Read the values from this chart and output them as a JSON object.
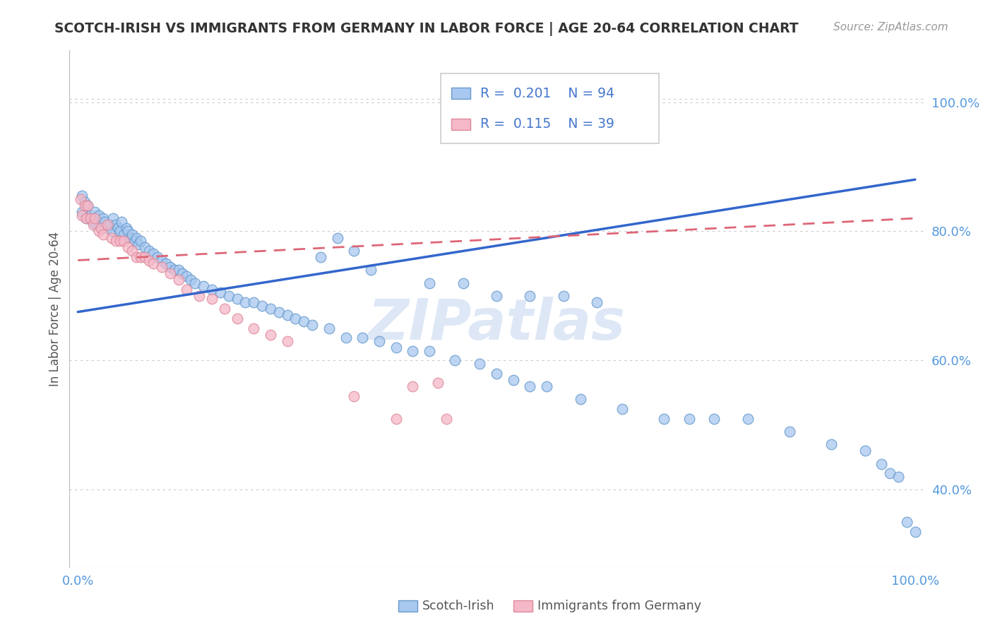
{
  "title": "SCOTCH-IRISH VS IMMIGRANTS FROM GERMANY IN LABOR FORCE | AGE 20-64 CORRELATION CHART",
  "source_text": "Source: ZipAtlas.com",
  "ylabel": "In Labor Force | Age 20-64",
  "xlim": [
    -0.01,
    1.01
  ],
  "ylim": [
    0.28,
    1.08
  ],
  "y_tick_values": [
    0.4,
    0.6,
    0.8,
    1.0
  ],
  "y_tick_labels": [
    "40.0%",
    "60.0%",
    "80.0%",
    "100.0%"
  ],
  "legend_blue_label": "Scotch-Irish",
  "legend_pink_label": "Immigrants from Germany",
  "R_blue": "0.201",
  "N_blue": "94",
  "R_pink": "0.115",
  "N_pink": "39",
  "blue_fill": "#A8C8F0",
  "blue_edge": "#6699CC",
  "pink_fill": "#F5B8C8",
  "pink_edge": "#DD8899",
  "trend_blue_color": "#3366CC",
  "trend_pink_color": "#DD6677",
  "axis_label_color": "#5599DD",
  "title_color": "#333333",
  "source_color": "#999999",
  "ylabel_color": "#555555",
  "grid_color": "#CCCCCC",
  "legend_text_color": "#4477CC",
  "watermark_color": "#C8D8F0",
  "blue_trend_y0": 0.675,
  "blue_trend_y1": 0.88,
  "pink_trend_y0": 0.755,
  "pink_trend_y1": 0.82,
  "blue_x": [
    0.005,
    0.005,
    0.008,
    0.01,
    0.012,
    0.015,
    0.018,
    0.02,
    0.022,
    0.025,
    0.028,
    0.03,
    0.032,
    0.035,
    0.038,
    0.04,
    0.042,
    0.045,
    0.048,
    0.05,
    0.052,
    0.055,
    0.058,
    0.06,
    0.062,
    0.065,
    0.068,
    0.07,
    0.072,
    0.075,
    0.08,
    0.085,
    0.09,
    0.095,
    0.1,
    0.105,
    0.11,
    0.115,
    0.12,
    0.125,
    0.13,
    0.135,
    0.14,
    0.15,
    0.16,
    0.17,
    0.18,
    0.19,
    0.2,
    0.21,
    0.22,
    0.23,
    0.24,
    0.25,
    0.26,
    0.27,
    0.28,
    0.3,
    0.32,
    0.34,
    0.36,
    0.38,
    0.4,
    0.42,
    0.45,
    0.48,
    0.5,
    0.52,
    0.54,
    0.56,
    0.6,
    0.65,
    0.7,
    0.73,
    0.76,
    0.8,
    0.85,
    0.9,
    0.94,
    0.96,
    0.97,
    0.98,
    0.99,
    1.0,
    0.29,
    0.31,
    0.33,
    0.35,
    0.42,
    0.46,
    0.5,
    0.54,
    0.58,
    0.62
  ],
  "blue_y": [
    0.855,
    0.83,
    0.845,
    0.82,
    0.84,
    0.825,
    0.815,
    0.83,
    0.81,
    0.825,
    0.81,
    0.82,
    0.815,
    0.805,
    0.81,
    0.8,
    0.82,
    0.81,
    0.805,
    0.8,
    0.815,
    0.795,
    0.805,
    0.8,
    0.79,
    0.795,
    0.785,
    0.79,
    0.78,
    0.785,
    0.775,
    0.77,
    0.765,
    0.76,
    0.755,
    0.75,
    0.745,
    0.74,
    0.74,
    0.735,
    0.73,
    0.725,
    0.72,
    0.715,
    0.71,
    0.705,
    0.7,
    0.695,
    0.69,
    0.69,
    0.685,
    0.68,
    0.675,
    0.67,
    0.665,
    0.66,
    0.655,
    0.65,
    0.635,
    0.635,
    0.63,
    0.62,
    0.615,
    0.615,
    0.6,
    0.595,
    0.58,
    0.57,
    0.56,
    0.56,
    0.54,
    0.525,
    0.51,
    0.51,
    0.51,
    0.51,
    0.49,
    0.47,
    0.46,
    0.44,
    0.425,
    0.42,
    0.35,
    0.335,
    0.76,
    0.79,
    0.77,
    0.74,
    0.72,
    0.72,
    0.7,
    0.7,
    0.7,
    0.69
  ],
  "pink_x": [
    0.003,
    0.005,
    0.008,
    0.01,
    0.012,
    0.015,
    0.018,
    0.02,
    0.025,
    0.028,
    0.03,
    0.035,
    0.04,
    0.045,
    0.05,
    0.055,
    0.06,
    0.065,
    0.07,
    0.075,
    0.08,
    0.085,
    0.09,
    0.1,
    0.11,
    0.12,
    0.13,
    0.145,
    0.16,
    0.175,
    0.19,
    0.21,
    0.23,
    0.25,
    0.33,
    0.38,
    0.4,
    0.43,
    0.44
  ],
  "pink_y": [
    0.85,
    0.825,
    0.84,
    0.82,
    0.84,
    0.82,
    0.81,
    0.82,
    0.8,
    0.805,
    0.795,
    0.81,
    0.79,
    0.785,
    0.785,
    0.785,
    0.775,
    0.77,
    0.76,
    0.76,
    0.76,
    0.755,
    0.75,
    0.745,
    0.735,
    0.725,
    0.71,
    0.7,
    0.695,
    0.68,
    0.665,
    0.65,
    0.64,
    0.63,
    0.545,
    0.51,
    0.56,
    0.565,
    0.51
  ]
}
